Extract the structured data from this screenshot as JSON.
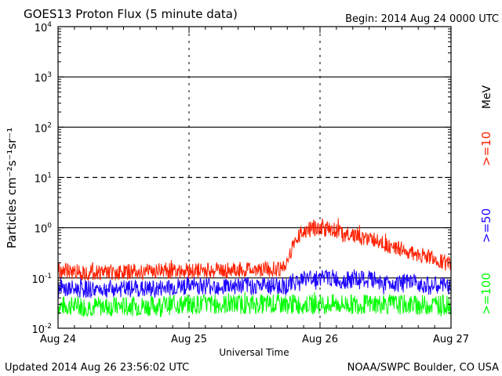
{
  "chart_data": {
    "type": "line",
    "title": "GOES13 Proton Flux (5 minute data)",
    "subtitle": "Begin: 2014 Aug 24 0000 UTC",
    "xlabel": "Universal Time",
    "ylabel": "Particles cm⁻²s⁻¹sr⁻¹",
    "y_scale": "log",
    "ylim": [
      0.01,
      10000
    ],
    "xlim": [
      0,
      72
    ],
    "x_unit": "hours since 2014 Aug 24 0000 UTC",
    "x_ticks": [
      {
        "x": 0,
        "label": "Aug 24"
      },
      {
        "x": 24,
        "label": "Aug 25"
      },
      {
        "x": 48,
        "label": "Aug 26"
      },
      {
        "x": 72,
        "label": "Aug 27"
      }
    ],
    "y_ticks": [
      {
        "value": 0.01,
        "base": "10",
        "exp": "-2"
      },
      {
        "value": 0.1,
        "base": "10",
        "exp": "-1"
      },
      {
        "value": 1,
        "base": "10",
        "exp": "0"
      },
      {
        "value": 10,
        "base": "10",
        "exp": "1"
      },
      {
        "value": 100,
        "base": "10",
        "exp": "2"
      },
      {
        "value": 1000,
        "base": "10",
        "exp": "3"
      },
      {
        "value": 10000,
        "base": "10",
        "exp": "4"
      }
    ],
    "reference_lines": [
      {
        "value": 10,
        "style": "dashed"
      },
      {
        "value": 0.1,
        "style": "solid"
      },
      {
        "value": 1,
        "style": "solid"
      },
      {
        "value": 100,
        "style": "solid"
      },
      {
        "value": 1000,
        "style": "solid"
      }
    ],
    "grid": "dashed vertical lines at day boundaries",
    "unit_label": "MeV",
    "series": [
      {
        "name": ">=10",
        "color": "#ff2000",
        "x": [
          0,
          6,
          12,
          18,
          24,
          30,
          36,
          40,
          42,
          43,
          44,
          45,
          46,
          47,
          48,
          49,
          50,
          51,
          52,
          54,
          56,
          58,
          60,
          62,
          64,
          66,
          68,
          70,
          72
        ],
        "values": [
          0.14,
          0.13,
          0.13,
          0.14,
          0.14,
          0.14,
          0.15,
          0.15,
          0.17,
          0.45,
          0.7,
          0.85,
          0.9,
          1.0,
          1.05,
          0.9,
          1.0,
          0.85,
          0.75,
          0.75,
          0.6,
          0.55,
          0.45,
          0.4,
          0.33,
          0.28,
          0.27,
          0.22,
          0.18
        ]
      },
      {
        "name": ">=50",
        "color": "#1a00ff",
        "x": [
          0,
          6,
          12,
          18,
          24,
          30,
          36,
          40,
          42,
          44,
          46,
          48,
          50,
          52,
          54,
          56,
          58,
          60,
          62,
          64,
          66,
          68,
          70,
          72
        ],
        "values": [
          0.06,
          0.06,
          0.06,
          0.06,
          0.07,
          0.07,
          0.07,
          0.07,
          0.07,
          0.09,
          0.1,
          0.1,
          0.1,
          0.09,
          0.09,
          0.09,
          0.09,
          0.08,
          0.08,
          0.08,
          0.08,
          0.07,
          0.07,
          0.07
        ]
      },
      {
        "name": ">=100",
        "color": "#00ff00",
        "x": [
          0,
          6,
          12,
          18,
          24,
          30,
          36,
          42,
          48,
          54,
          60,
          66,
          72
        ],
        "values": [
          0.028,
          0.027,
          0.027,
          0.028,
          0.03,
          0.03,
          0.03,
          0.03,
          0.03,
          0.03,
          0.03,
          0.029,
          0.029
        ]
      }
    ]
  },
  "footer": {
    "updated": "Updated 2014 Aug 26 23:56:02 UTC",
    "source": "NOAA/SWPC Boulder, CO USA"
  }
}
